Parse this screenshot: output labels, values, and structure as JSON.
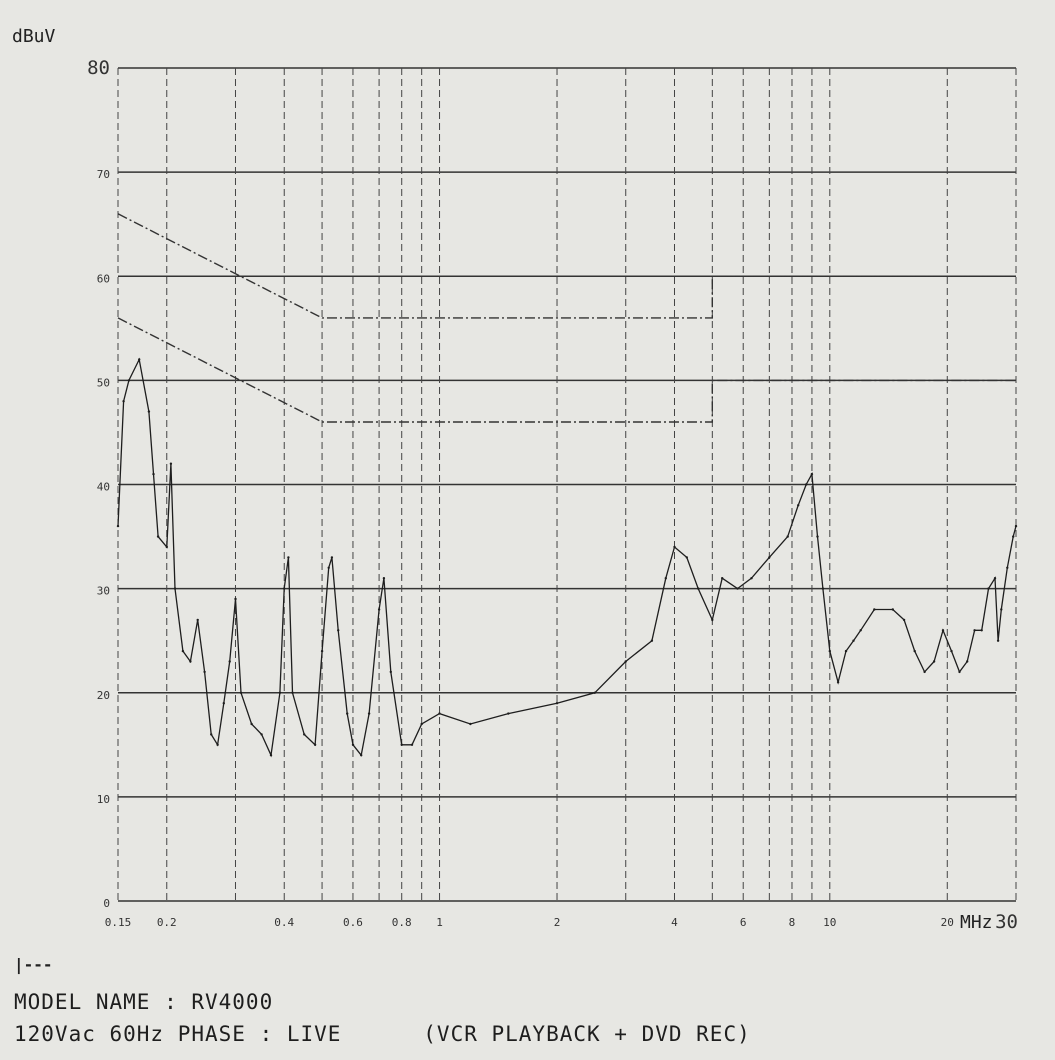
{
  "chart_data": {
    "type": "line",
    "ylabel": "dBuV",
    "xlabel": "MHz",
    "x_scale": "log",
    "xlim": [
      0.15,
      30
    ],
    "ylim": [
      0,
      80
    ],
    "y_ticks": [
      {
        "value": 80,
        "label": "80"
      },
      {
        "value": 70,
        "label": "70"
      },
      {
        "value": 60,
        "label": "60"
      },
      {
        "value": 50,
        "label": "50"
      },
      {
        "value": 40,
        "label": "40"
      },
      {
        "value": 30,
        "label": "30"
      },
      {
        "value": 20,
        "label": "20"
      },
      {
        "value": 10,
        "label": "10"
      },
      {
        "value": 0,
        "label": "0"
      }
    ],
    "x_ticks": [
      {
        "value": 0.15,
        "label": "0.15"
      },
      {
        "value": 0.2,
        "label": "0.2"
      },
      {
        "value": 0.4,
        "label": "0.4"
      },
      {
        "value": 0.6,
        "label": "0.6"
      },
      {
        "value": 0.8,
        "label": "0.8"
      },
      {
        "value": 1,
        "label": "1"
      },
      {
        "value": 2,
        "label": "2"
      },
      {
        "value": 4,
        "label": "4"
      },
      {
        "value": 6,
        "label": "6"
      },
      {
        "value": 8,
        "label": "8"
      },
      {
        "value": 10,
        "label": "10"
      },
      {
        "value": 20,
        "label": "20"
      },
      {
        "value": 30,
        "label": "30"
      }
    ],
    "x_minor_grid": [
      0.3,
      0.5,
      0.7,
      0.9,
      3,
      5,
      7,
      9
    ],
    "limit_lines": [
      {
        "style": "dash-dot",
        "points": [
          [
            0.15,
            66
          ],
          [
            0.5,
            56
          ],
          [
            5,
            56
          ],
          [
            5,
            60
          ],
          [
            30,
            60
          ]
        ]
      },
      {
        "style": "dash-dot",
        "points": [
          [
            0.15,
            56
          ],
          [
            0.5,
            46
          ],
          [
            5,
            46
          ],
          [
            5,
            50
          ],
          [
            30,
            50
          ]
        ]
      }
    ],
    "series": [
      {
        "style": "solid",
        "points": [
          [
            0.15,
            36
          ],
          [
            0.155,
            48
          ],
          [
            0.16,
            50
          ],
          [
            0.17,
            52
          ],
          [
            0.18,
            47
          ],
          [
            0.185,
            41
          ],
          [
            0.19,
            35
          ],
          [
            0.2,
            34
          ],
          [
            0.205,
            42
          ],
          [
            0.21,
            30
          ],
          [
            0.22,
            24
          ],
          [
            0.23,
            23
          ],
          [
            0.24,
            27
          ],
          [
            0.25,
            22
          ],
          [
            0.26,
            16
          ],
          [
            0.27,
            15
          ],
          [
            0.28,
            19
          ],
          [
            0.29,
            23
          ],
          [
            0.3,
            29
          ],
          [
            0.31,
            20
          ],
          [
            0.33,
            17
          ],
          [
            0.35,
            16
          ],
          [
            0.37,
            14
          ],
          [
            0.39,
            20
          ],
          [
            0.4,
            30
          ],
          [
            0.41,
            33
          ],
          [
            0.42,
            20
          ],
          [
            0.45,
            16
          ],
          [
            0.48,
            15
          ],
          [
            0.5,
            24
          ],
          [
            0.52,
            32
          ],
          [
            0.53,
            33
          ],
          [
            0.55,
            26
          ],
          [
            0.58,
            18
          ],
          [
            0.6,
            15
          ],
          [
            0.63,
            14
          ],
          [
            0.66,
            18
          ],
          [
            0.7,
            28
          ],
          [
            0.72,
            31
          ],
          [
            0.75,
            22
          ],
          [
            0.8,
            15
          ],
          [
            0.85,
            15
          ],
          [
            0.9,
            17
          ],
          [
            1.0,
            18
          ],
          [
            1.2,
            17
          ],
          [
            1.5,
            18
          ],
          [
            2.0,
            19
          ],
          [
            2.5,
            20
          ],
          [
            3.0,
            23
          ],
          [
            3.5,
            25
          ],
          [
            3.8,
            31
          ],
          [
            4.0,
            34
          ],
          [
            4.3,
            33
          ],
          [
            4.6,
            30
          ],
          [
            5.0,
            27
          ],
          [
            5.3,
            31
          ],
          [
            5.8,
            30
          ],
          [
            6.3,
            31
          ],
          [
            7.0,
            33
          ],
          [
            7.8,
            35
          ],
          [
            8.3,
            38
          ],
          [
            8.7,
            40
          ],
          [
            9.0,
            41
          ],
          [
            9.3,
            35
          ],
          [
            9.6,
            30
          ],
          [
            10.0,
            24
          ],
          [
            10.5,
            21
          ],
          [
            11.0,
            24
          ],
          [
            11.5,
            25
          ],
          [
            12.0,
            26
          ],
          [
            13.0,
            28
          ],
          [
            14.5,
            28
          ],
          [
            15.5,
            27
          ],
          [
            16.5,
            24
          ],
          [
            17.5,
            22
          ],
          [
            18.5,
            23
          ],
          [
            19.5,
            26
          ],
          [
            20.5,
            24
          ],
          [
            21.5,
            22
          ],
          [
            22.5,
            23
          ],
          [
            23.5,
            26
          ],
          [
            24.5,
            26
          ],
          [
            25.5,
            30
          ],
          [
            26.5,
            31
          ],
          [
            27.0,
            25
          ],
          [
            27.5,
            28
          ],
          [
            28.5,
            32
          ],
          [
            29.5,
            35
          ],
          [
            30,
            36
          ]
        ]
      }
    ]
  },
  "footer": {
    "legend_mark": "|---",
    "model_line": "MODEL NAME : RV4000",
    "power_line": "120Vac 60Hz PHASE : LIVE      (VCR PLAYBACK + DVD REC)"
  }
}
